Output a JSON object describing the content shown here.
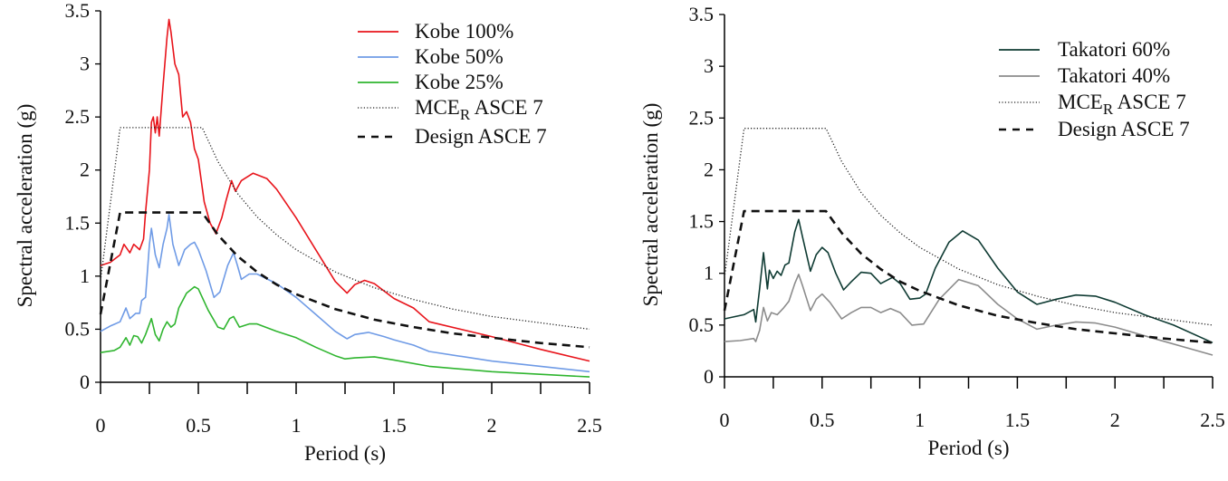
{
  "chart_data": [
    {
      "type": "line",
      "xlabel": "Period (s)",
      "ylabel": "Spectral acceleration (g)",
      "xlim": [
        0,
        2.5
      ],
      "ylim": [
        0,
        3.5
      ],
      "xticks": [
        "0",
        "0.5",
        "1",
        "1.5",
        "2",
        "2.5"
      ],
      "yticks": [
        "0",
        "0.5",
        "1",
        "1.5",
        "2",
        "2.5",
        "3",
        "3.5"
      ],
      "grid": false,
      "legend_position": "top-right",
      "series": [
        {
          "name": "Kobe 100%",
          "color": "#e8141b",
          "style": "solid",
          "x": [
            0,
            0.05,
            0.1,
            0.12,
            0.15,
            0.17,
            0.2,
            0.22,
            0.23,
            0.25,
            0.26,
            0.27,
            0.28,
            0.29,
            0.3,
            0.32,
            0.34,
            0.35,
            0.36,
            0.38,
            0.4,
            0.42,
            0.44,
            0.46,
            0.48,
            0.5,
            0.53,
            0.56,
            0.59,
            0.62,
            0.64,
            0.67,
            0.69,
            0.72,
            0.78,
            0.85,
            0.9,
            1.0,
            1.1,
            1.2,
            1.26,
            1.3,
            1.35,
            1.4,
            1.5,
            1.6,
            1.68,
            2.0,
            2.25,
            2.5
          ],
          "y": [
            1.1,
            1.13,
            1.2,
            1.3,
            1.22,
            1.3,
            1.25,
            1.35,
            1.6,
            2.0,
            2.45,
            2.5,
            2.35,
            2.5,
            2.32,
            2.8,
            3.25,
            3.42,
            3.3,
            3.0,
            2.9,
            2.5,
            2.55,
            2.45,
            2.2,
            2.1,
            1.7,
            1.5,
            1.4,
            1.55,
            1.7,
            1.9,
            1.8,
            1.9,
            1.97,
            1.92,
            1.82,
            1.55,
            1.25,
            0.95,
            0.84,
            0.92,
            0.96,
            0.93,
            0.79,
            0.7,
            0.57,
            0.43,
            0.31,
            0.2
          ]
        },
        {
          "name": "Kobe 50%",
          "color": "#6f9be6",
          "style": "solid",
          "x": [
            0,
            0.05,
            0.1,
            0.13,
            0.15,
            0.18,
            0.2,
            0.21,
            0.23,
            0.25,
            0.26,
            0.28,
            0.3,
            0.32,
            0.34,
            0.35,
            0.37,
            0.4,
            0.43,
            0.46,
            0.48,
            0.5,
            0.54,
            0.58,
            0.61,
            0.65,
            0.68,
            0.7,
            0.72,
            0.76,
            0.8,
            0.9,
            1.0,
            1.1,
            1.2,
            1.26,
            1.3,
            1.37,
            1.45,
            1.5,
            1.6,
            1.68,
            2.0,
            2.25,
            2.5
          ],
          "y": [
            0.48,
            0.53,
            0.57,
            0.7,
            0.6,
            0.65,
            0.65,
            0.77,
            0.8,
            1.3,
            1.45,
            1.2,
            1.08,
            1.3,
            1.45,
            1.58,
            1.3,
            1.1,
            1.25,
            1.3,
            1.32,
            1.25,
            1.05,
            0.8,
            0.85,
            1.1,
            1.22,
            1.1,
            0.97,
            1.02,
            1.02,
            0.93,
            0.8,
            0.64,
            0.48,
            0.41,
            0.45,
            0.47,
            0.43,
            0.4,
            0.35,
            0.29,
            0.2,
            0.15,
            0.1
          ]
        },
        {
          "name": "Kobe 25%",
          "color": "#2fb52f",
          "style": "solid",
          "x": [
            0,
            0.07,
            0.1,
            0.13,
            0.15,
            0.17,
            0.19,
            0.21,
            0.23,
            0.26,
            0.28,
            0.3,
            0.32,
            0.34,
            0.36,
            0.38,
            0.4,
            0.44,
            0.48,
            0.5,
            0.55,
            0.6,
            0.63,
            0.66,
            0.68,
            0.71,
            0.76,
            0.8,
            0.9,
            1.0,
            1.1,
            1.2,
            1.25,
            1.3,
            1.4,
            1.5,
            1.68,
            2.0,
            2.5
          ],
          "y": [
            0.28,
            0.3,
            0.33,
            0.42,
            0.35,
            0.44,
            0.43,
            0.37,
            0.45,
            0.6,
            0.45,
            0.39,
            0.5,
            0.57,
            0.52,
            0.55,
            0.7,
            0.84,
            0.9,
            0.88,
            0.68,
            0.52,
            0.5,
            0.6,
            0.62,
            0.52,
            0.55,
            0.55,
            0.48,
            0.42,
            0.33,
            0.25,
            0.22,
            0.23,
            0.24,
            0.21,
            0.15,
            0.1,
            0.05
          ]
        },
        {
          "name": "MCER ASCE 7",
          "name_main": "MCE",
          "name_sub": "R",
          "name_rest": " ASCE 7",
          "color": "#222222",
          "style": "dotted",
          "x": [
            0,
            0.1,
            0.52,
            0.6,
            0.7,
            0.8,
            0.9,
            1.0,
            1.2,
            1.4,
            1.6,
            1.8,
            2.0,
            2.25,
            2.5
          ],
          "y": [
            0.96,
            2.4,
            2.4,
            2.08,
            1.78,
            1.56,
            1.39,
            1.25,
            1.04,
            0.89,
            0.78,
            0.69,
            0.62,
            0.56,
            0.5
          ]
        },
        {
          "name": "Design ASCE 7",
          "color": "#111111",
          "style": "dashed",
          "x": [
            0,
            0.1,
            0.52,
            0.6,
            0.7,
            0.8,
            0.9,
            1.0,
            1.2,
            1.4,
            1.6,
            1.8,
            2.0,
            2.25,
            2.5
          ],
          "y": [
            0.64,
            1.6,
            1.6,
            1.39,
            1.19,
            1.04,
            0.92,
            0.83,
            0.69,
            0.59,
            0.52,
            0.46,
            0.42,
            0.37,
            0.33
          ]
        }
      ]
    },
    {
      "type": "line",
      "xlabel": "Period (s)",
      "ylabel": "Spectral acceleration (g)",
      "xlim": [
        0,
        2.5
      ],
      "ylim": [
        0,
        3.5
      ],
      "xticks": [
        "0",
        "0.5",
        "1",
        "1.5",
        "2",
        "2.5"
      ],
      "yticks": [
        "0",
        "0.5",
        "1",
        "1.5",
        "2",
        "2.5",
        "3",
        "3.5"
      ],
      "grid": false,
      "legend_position": "top-right",
      "series": [
        {
          "name": "Takatori 60%",
          "color": "#0f3b33",
          "style": "solid",
          "x": [
            0,
            0.1,
            0.15,
            0.16,
            0.18,
            0.2,
            0.22,
            0.23,
            0.25,
            0.27,
            0.29,
            0.31,
            0.33,
            0.36,
            0.38,
            0.4,
            0.44,
            0.47,
            0.5,
            0.53,
            0.57,
            0.61,
            0.65,
            0.7,
            0.75,
            0.8,
            0.83,
            0.86,
            0.9,
            0.95,
            1.0,
            1.03,
            1.08,
            1.15,
            1.22,
            1.3,
            1.4,
            1.5,
            1.6,
            1.7,
            1.8,
            1.9,
            2.0,
            2.15,
            2.3,
            2.5
          ],
          "y": [
            0.56,
            0.6,
            0.65,
            0.53,
            0.85,
            1.2,
            0.85,
            1.03,
            0.95,
            1.02,
            0.98,
            1.08,
            1.1,
            1.4,
            1.52,
            1.35,
            1.02,
            1.18,
            1.25,
            1.2,
            1.0,
            0.84,
            0.92,
            1.01,
            1.0,
            0.9,
            0.93,
            0.96,
            0.9,
            0.75,
            0.76,
            0.8,
            1.05,
            1.3,
            1.41,
            1.32,
            1.05,
            0.82,
            0.7,
            0.75,
            0.79,
            0.78,
            0.72,
            0.6,
            0.5,
            0.33
          ]
        },
        {
          "name": "Takatori 40%",
          "color": "#8c8c8c",
          "style": "solid",
          "x": [
            0,
            0.08,
            0.15,
            0.16,
            0.18,
            0.2,
            0.22,
            0.24,
            0.27,
            0.3,
            0.33,
            0.36,
            0.38,
            0.4,
            0.44,
            0.47,
            0.5,
            0.54,
            0.6,
            0.65,
            0.7,
            0.75,
            0.8,
            0.85,
            0.9,
            0.96,
            1.02,
            1.1,
            1.2,
            1.3,
            1.4,
            1.5,
            1.6,
            1.7,
            1.8,
            1.9,
            2.0,
            2.2,
            2.5
          ],
          "y": [
            0.34,
            0.35,
            0.37,
            0.34,
            0.45,
            0.67,
            0.54,
            0.62,
            0.6,
            0.66,
            0.73,
            0.9,
            0.99,
            0.88,
            0.64,
            0.75,
            0.8,
            0.72,
            0.56,
            0.62,
            0.67,
            0.67,
            0.62,
            0.66,
            0.62,
            0.5,
            0.51,
            0.75,
            0.94,
            0.88,
            0.7,
            0.56,
            0.46,
            0.5,
            0.53,
            0.52,
            0.48,
            0.37,
            0.21
          ]
        },
        {
          "name": "MCER ASCE 7",
          "name_main": "MCE",
          "name_sub": "R",
          "name_rest": " ASCE 7",
          "color": "#222222",
          "style": "dotted",
          "x": [
            0,
            0.1,
            0.52,
            0.6,
            0.7,
            0.8,
            0.9,
            1.0,
            1.2,
            1.4,
            1.6,
            1.8,
            2.0,
            2.25,
            2.5
          ],
          "y": [
            0.96,
            2.4,
            2.4,
            2.08,
            1.78,
            1.56,
            1.39,
            1.25,
            1.04,
            0.89,
            0.78,
            0.69,
            0.62,
            0.56,
            0.5
          ]
        },
        {
          "name": "Design ASCE 7",
          "color": "#111111",
          "style": "dashed",
          "x": [
            0,
            0.1,
            0.52,
            0.6,
            0.7,
            0.8,
            0.9,
            1.0,
            1.2,
            1.4,
            1.6,
            1.8,
            2.0,
            2.25,
            2.5
          ],
          "y": [
            0.64,
            1.6,
            1.6,
            1.39,
            1.19,
            1.04,
            0.92,
            0.83,
            0.69,
            0.59,
            0.52,
            0.46,
            0.42,
            0.37,
            0.33
          ]
        }
      ]
    }
  ]
}
